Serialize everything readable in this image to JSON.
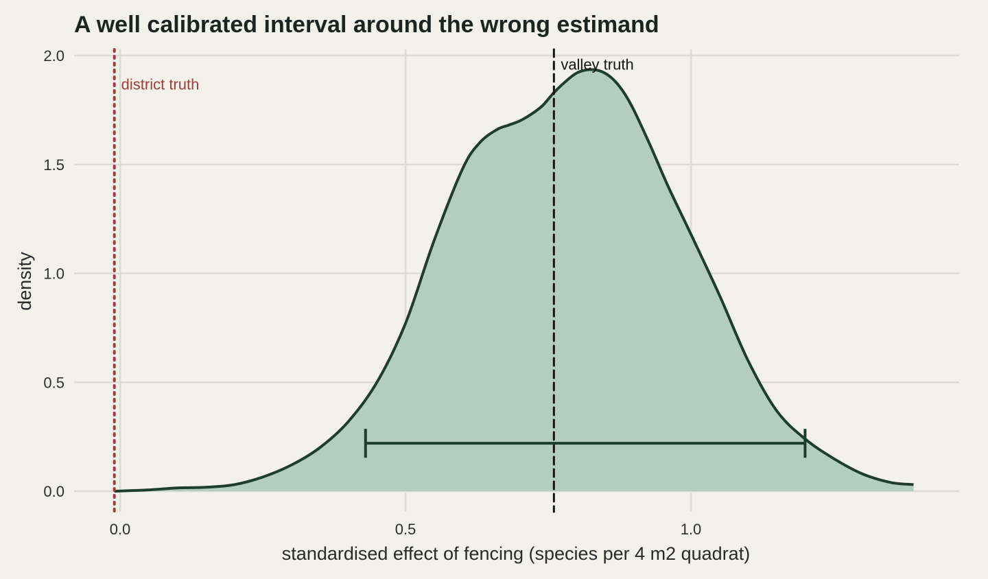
{
  "chart_data": {
    "type": "area",
    "title": "A well calibrated interval around the wrong estimand",
    "xlabel": "standardised effect of fencing (species per 4 m2 quadrat)",
    "ylabel": "density",
    "xlim": [
      -0.08,
      1.47
    ],
    "ylim": [
      0,
      2.0
    ],
    "x_ticks": [
      "0.0",
      "0.5",
      "1.0"
    ],
    "x_tick_values": [
      0.0,
      0.5,
      1.0
    ],
    "y_ticks": [
      "0.0",
      "0.5",
      "1.0",
      "1.5",
      "2.0"
    ],
    "y_tick_values": [
      0.0,
      0.5,
      1.0,
      1.5,
      2.0
    ],
    "grid": true,
    "density": {
      "x": [
        -0.01,
        0.05,
        0.1,
        0.15,
        0.2,
        0.25,
        0.3,
        0.35,
        0.4,
        0.45,
        0.5,
        0.55,
        0.6,
        0.63,
        0.66,
        0.68,
        0.7,
        0.72,
        0.74,
        0.76,
        0.78,
        0.8,
        0.82,
        0.84,
        0.86,
        0.88,
        0.9,
        0.93,
        0.96,
        1.0,
        1.05,
        1.1,
        1.15,
        1.2,
        1.25,
        1.3,
        1.35,
        1.39
      ],
      "y": [
        0.0,
        0.006,
        0.015,
        0.018,
        0.03,
        0.065,
        0.12,
        0.2,
        0.32,
        0.5,
        0.77,
        1.15,
        1.48,
        1.6,
        1.66,
        1.68,
        1.7,
        1.73,
        1.77,
        1.83,
        1.88,
        1.92,
        1.935,
        1.93,
        1.9,
        1.84,
        1.75,
        1.58,
        1.4,
        1.18,
        0.9,
        0.6,
        0.37,
        0.24,
        0.15,
        0.08,
        0.04,
        0.03
      ],
      "fill_color": "#b4cebd",
      "line_color": "#1f3d2c"
    },
    "interval": {
      "low": 0.43,
      "high": 1.2,
      "y": 0.22,
      "color": "#1f3d2c"
    },
    "reference_lines": [
      {
        "label": "district truth",
        "x": -0.01,
        "style": "dotted",
        "color": "#a23b3b",
        "label_y": 1.87
      },
      {
        "label": "valley truth",
        "x": 0.76,
        "style": "dashed",
        "color": "#141414",
        "label_y": 1.96
      }
    ]
  }
}
